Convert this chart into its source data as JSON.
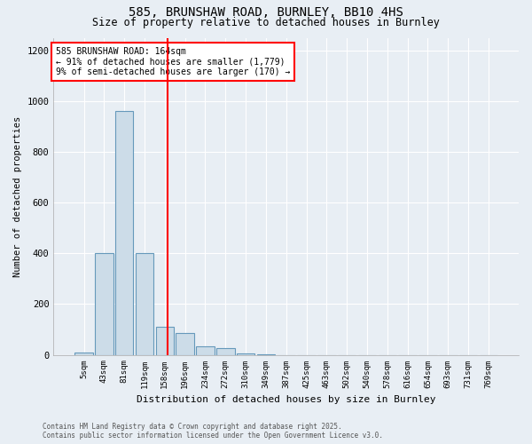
{
  "title_line1": "585, BRUNSHAW ROAD, BURNLEY, BB10 4HS",
  "title_line2": "Size of property relative to detached houses in Burnley",
  "xlabel": "Distribution of detached houses by size in Burnley",
  "ylabel": "Number of detached properties",
  "categories": [
    "5sqm",
    "43sqm",
    "81sqm",
    "119sqm",
    "158sqm",
    "196sqm",
    "234sqm",
    "272sqm",
    "310sqm",
    "349sqm",
    "387sqm",
    "425sqm",
    "463sqm",
    "502sqm",
    "540sqm",
    "578sqm",
    "616sqm",
    "654sqm",
    "693sqm",
    "731sqm",
    "769sqm"
  ],
  "values": [
    10,
    400,
    960,
    400,
    110,
    85,
    35,
    25,
    5,
    1,
    0,
    0,
    0,
    0,
    0,
    0,
    0,
    0,
    0,
    0,
    0
  ],
  "bar_color": "#ccdce8",
  "bar_edgecolor": "#6699bb",
  "bar_linewidth": 0.8,
  "annotation_title": "585 BRUNSHAW ROAD: 164sqm",
  "annotation_smaller": "← 91% of detached houses are smaller (1,779)",
  "annotation_larger": "9% of semi-detached houses are larger (170) →",
  "annotation_box_facecolor": "white",
  "annotation_box_edgecolor": "red",
  "redline_color": "red",
  "plot_facecolor": "#e8eef4",
  "fig_facecolor": "#e8eef4",
  "grid_color": "white",
  "ylim": [
    0,
    1250
  ],
  "yticks": [
    0,
    200,
    400,
    600,
    800,
    1000,
    1200
  ],
  "footer_line1": "Contains HM Land Registry data © Crown copyright and database right 2025.",
  "footer_line2": "Contains public sector information licensed under the Open Government Licence v3.0."
}
